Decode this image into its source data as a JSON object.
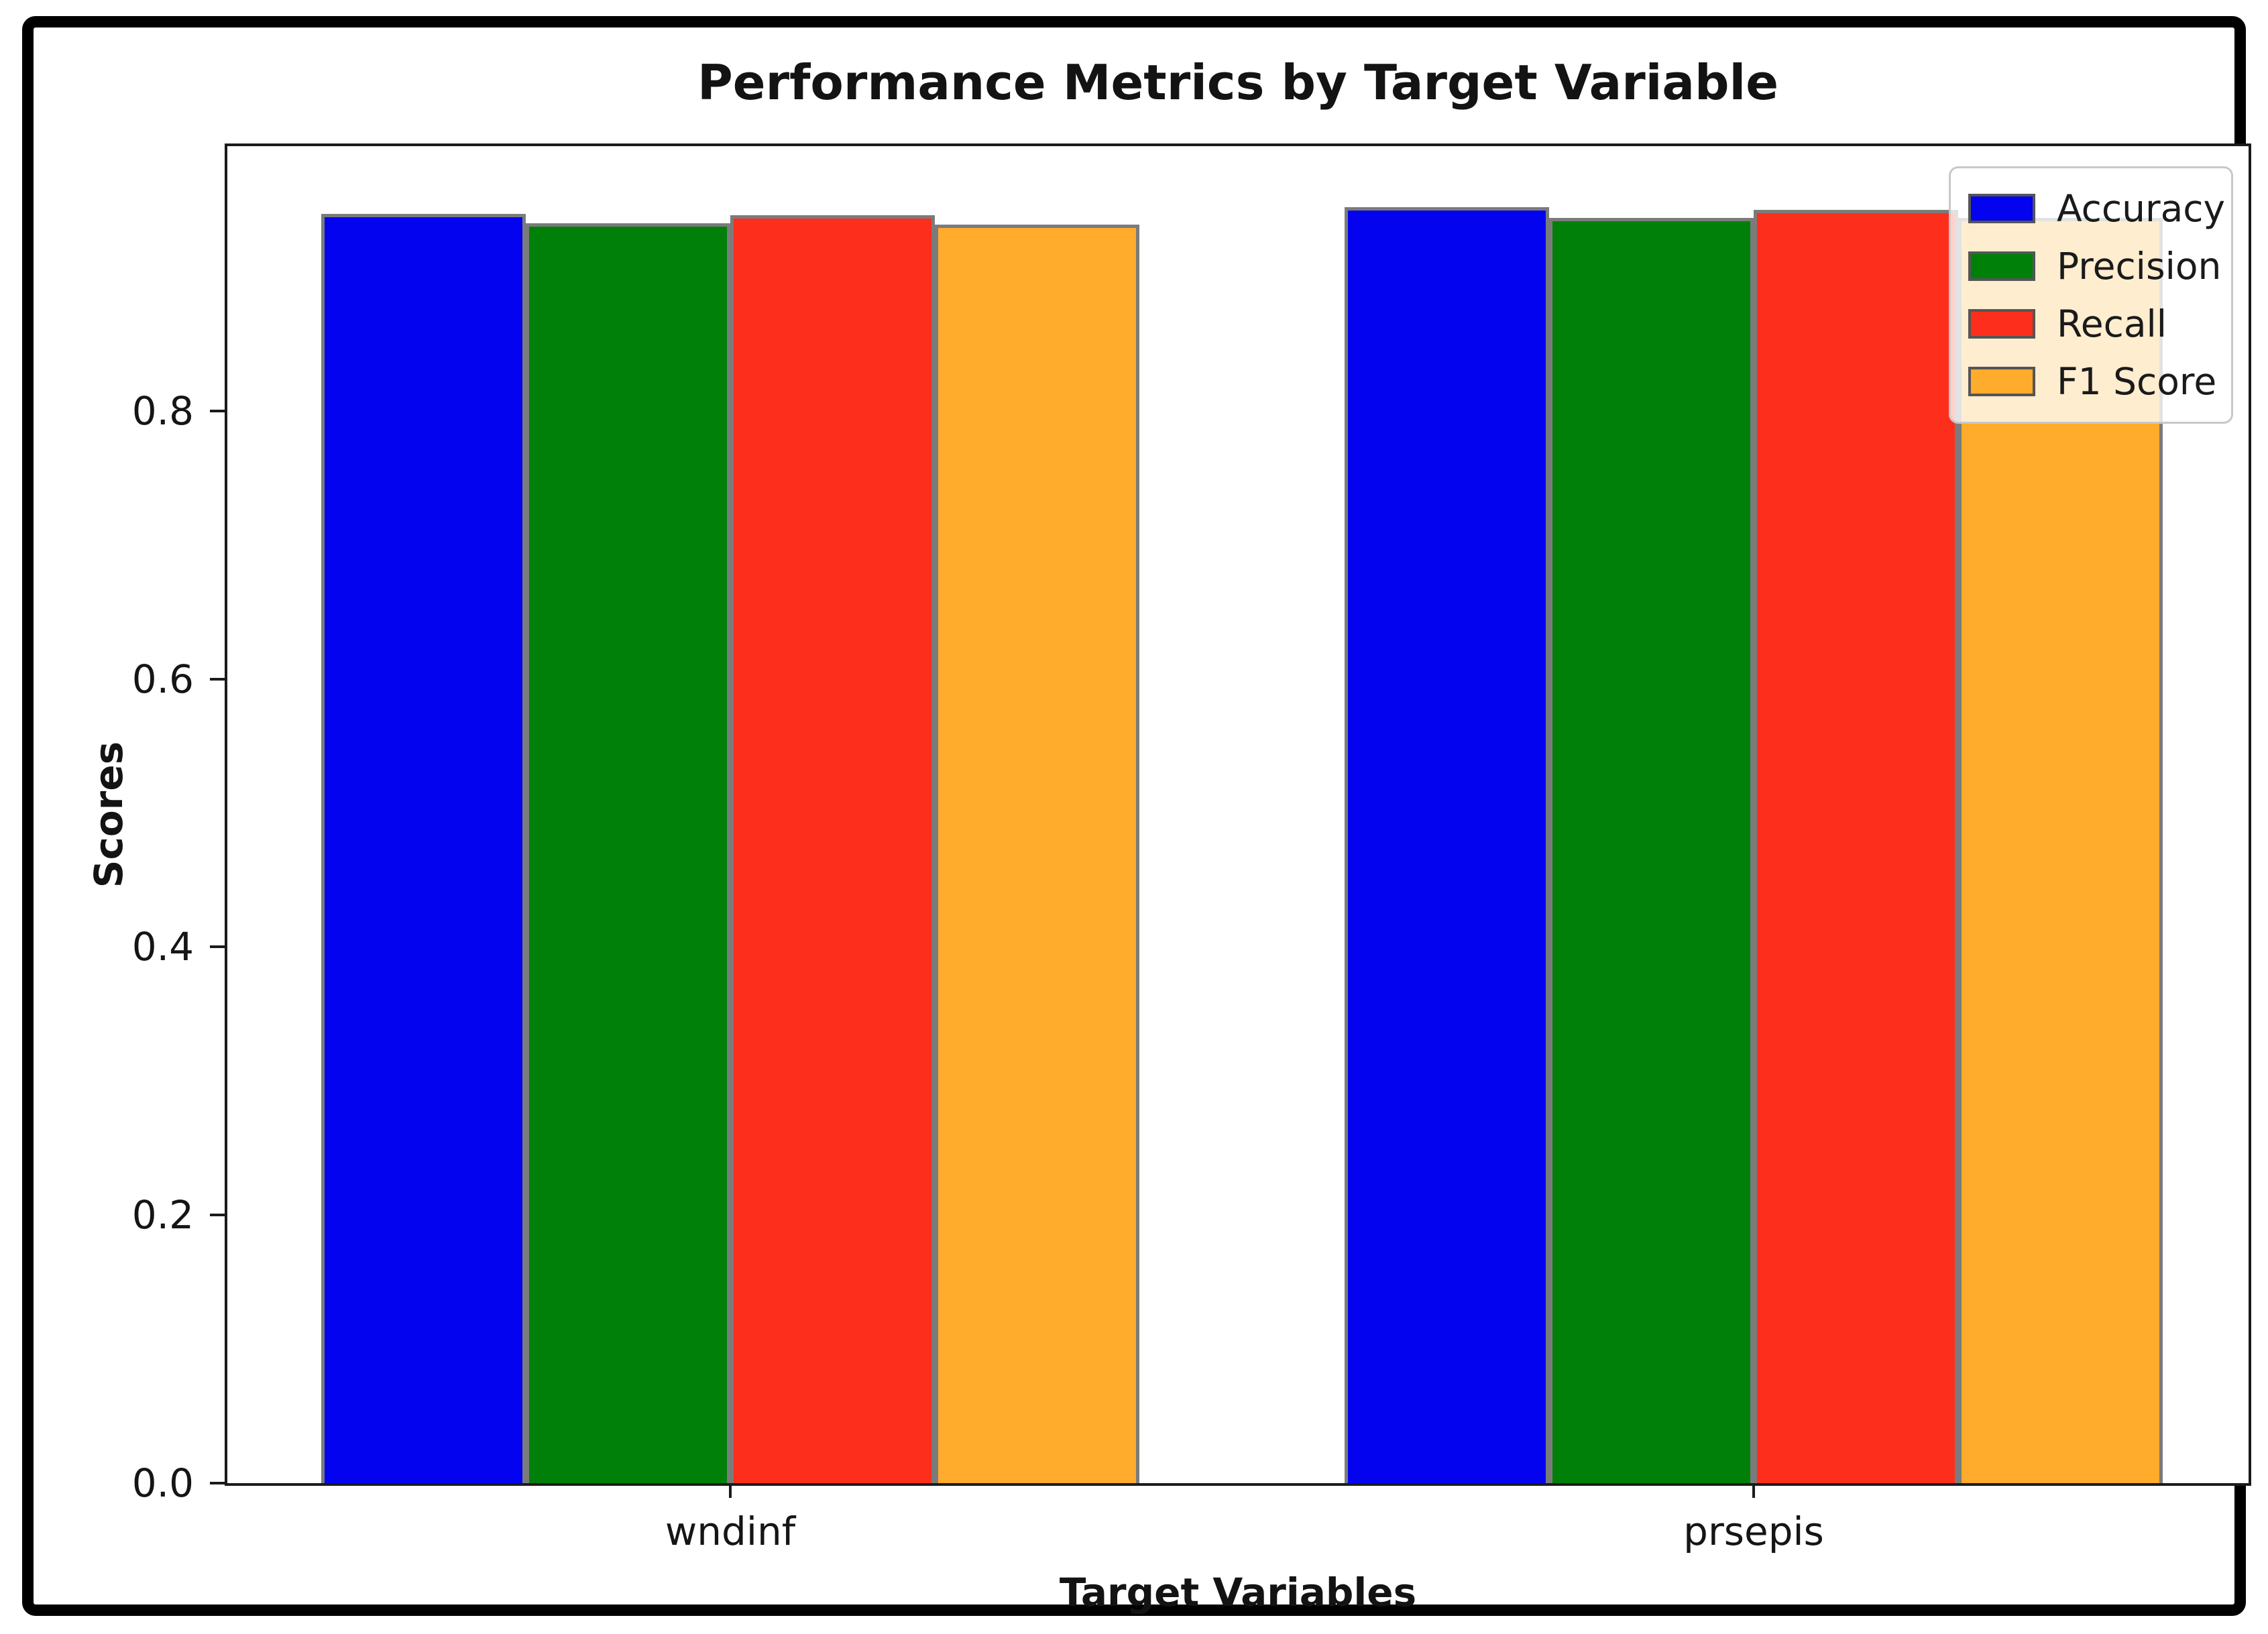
{
  "chart_data": {
    "type": "bar",
    "title": "Performance Metrics by Target Variable",
    "xlabel": "Target Variables",
    "ylabel": "Scores",
    "categories": [
      "wndinf",
      "prsepis"
    ],
    "series": [
      {
        "name": "Accuracy",
        "color": "#0403f0",
        "values": [
          0.947,
          0.952
        ]
      },
      {
        "name": "Precision",
        "color": "#008009",
        "values": [
          0.94,
          0.944
        ]
      },
      {
        "name": "Recall",
        "color": "#fd2e1c",
        "values": [
          0.946,
          0.95
        ]
      },
      {
        "name": "F1 Score",
        "color": "#ffab2b",
        "values": [
          0.939,
          0.944
        ]
      }
    ],
    "ylim": [
      0,
      0.9975
    ],
    "yticks": [
      "0.0",
      "0.2",
      "0.4",
      "0.6",
      "0.8"
    ],
    "grid": "off",
    "legend_position": "upper right",
    "bar_edge_color": "#7b7b7b"
  }
}
